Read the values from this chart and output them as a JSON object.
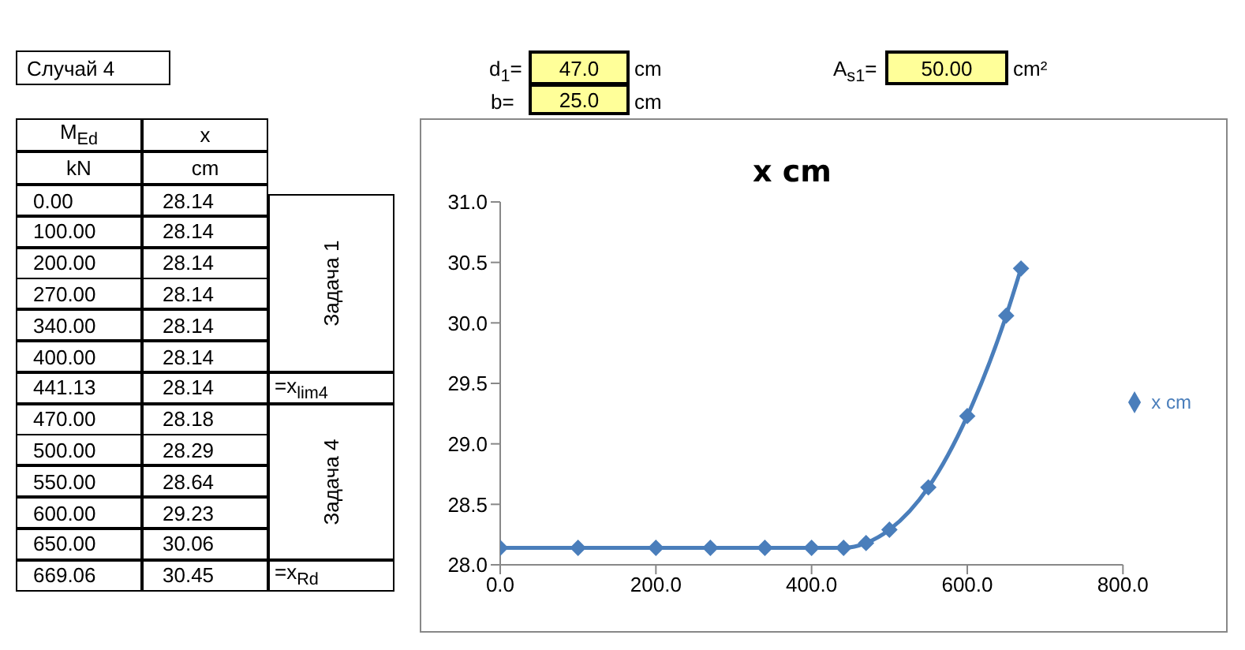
{
  "chart_data": {
    "type": "line",
    "title": "x cm",
    "x": [
      0,
      100,
      200,
      270,
      340,
      400,
      441.13,
      470,
      500,
      550,
      600,
      650,
      669.06
    ],
    "series": [
      {
        "name": "x cm",
        "color": "#4a7ebb",
        "values": [
          28.14,
          28.14,
          28.14,
          28.14,
          28.14,
          28.14,
          28.14,
          28.18,
          28.29,
          28.64,
          29.23,
          30.06,
          30.45
        ]
      }
    ],
    "xlim": [
      0,
      800
    ],
    "xticks": [
      {
        "value": 0,
        "label": "0.0"
      },
      {
        "value": 200,
        "label": "200.0"
      },
      {
        "value": 400,
        "label": "400.0"
      },
      {
        "value": 600,
        "label": "600.0"
      },
      {
        "value": 800,
        "label": "800.0"
      }
    ],
    "ylim": [
      28,
      31
    ],
    "yticks": [
      {
        "value": 28,
        "label": "28.0"
      },
      {
        "value": 28.5,
        "label": "28.5"
      },
      {
        "value": 29,
        "label": "29.0"
      },
      {
        "value": 29.5,
        "label": "29.5"
      },
      {
        "value": 30,
        "label": "30.0"
      },
      {
        "value": 30.5,
        "label": "30.5"
      },
      {
        "value": 31,
        "label": "31.0"
      }
    ],
    "marker": "diamond",
    "grid": false,
    "legend": "right",
    "annotations": [
      "Случай 4",
      "d$_{1}$=",
      "47.0",
      "cm",
      "b=",
      "25.0",
      "cm",
      "A$_{s1}$=",
      "50.00",
      "cm²",
      "M$_{Ed}$",
      "kN",
      "x",
      "cm",
      "Задача 1",
      "Задача 4",
      "=x$_{lim4}$",
      "=x$_{Rd}$",
      "0.00",
      "28.14",
      "100.00",
      "28.14",
      "200.00",
      "28.14",
      "270.00",
      "28.14",
      "340.00",
      "28.14",
      "400.00",
      "28.14",
      "441.13",
      "28.14",
      "470.00",
      "28.18",
      "500.00",
      "28.29",
      "550.00",
      "28.64",
      "600.00",
      "29.23",
      "650.00",
      "30.06",
      "669.06",
      "30.45"
    ]
  }
}
